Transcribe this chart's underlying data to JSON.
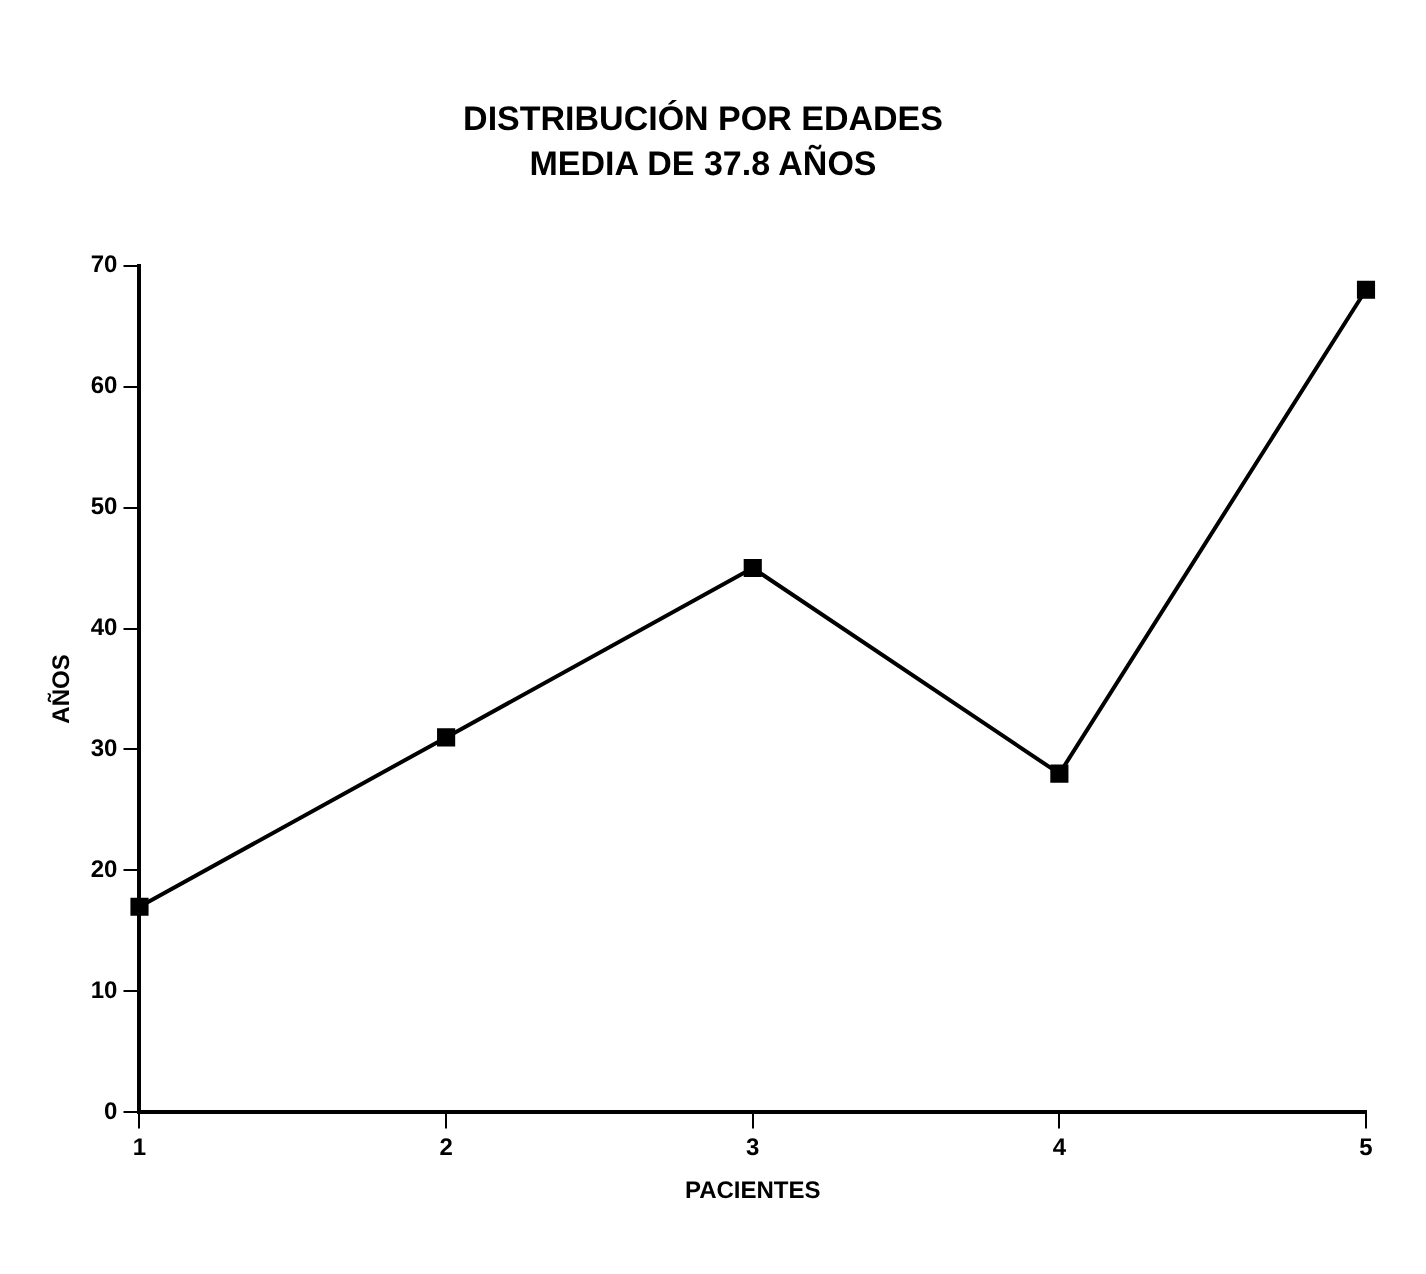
{
  "chart_data": {
    "type": "line",
    "title": "DISTRIBUCIÓN POR EDADES",
    "subtitle": "MEDIA DE 37.8 AÑOS",
    "xlabel": "PACIENTES",
    "ylabel": "AÑOS",
    "categories": [
      "1",
      "2",
      "3",
      "4",
      "5"
    ],
    "series": [
      {
        "color": "#000000",
        "values": [
          17,
          31,
          45,
          28,
          68
        ]
      }
    ],
    "ylim": [
      0,
      70
    ],
    "yticks": [
      0,
      10,
      20,
      30,
      40,
      50,
      60,
      70
    ],
    "grid": false,
    "legend": false,
    "marker": "square",
    "line_style": "solid"
  }
}
